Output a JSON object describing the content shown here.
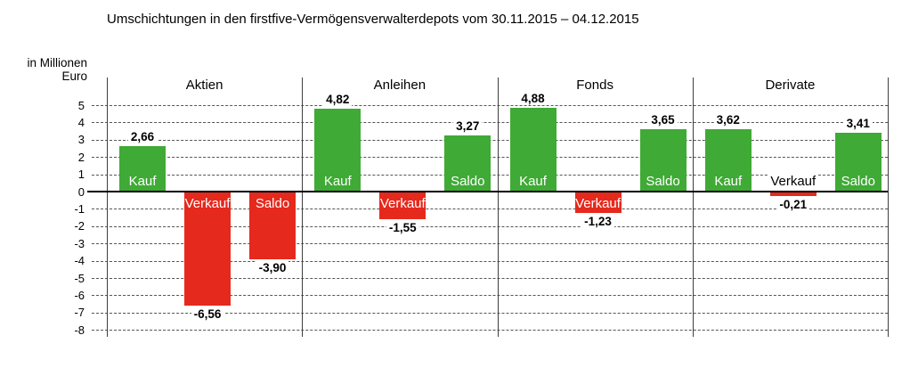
{
  "title": "Umschichtungen in den firstfive-Vermögensverwalterdepots vom 30.11.2015 – 04.12.2015",
  "y_axis_unit": {
    "line1": "in Millionen",
    "line2": "Euro"
  },
  "colors": {
    "positive_bar": "#3faa35",
    "negative_bar": "#e5291d",
    "bar_label_text": "#ffffff",
    "value_label_text": "#000000",
    "grid_line": "#555555",
    "separator_line": "#3f3f3f",
    "zero_line": "#000000",
    "background": "#ffffff"
  },
  "chart_data": {
    "type": "bar",
    "title": "Umschichtungen in den firstfive-Vermögensverwalterdepots vom 30.11.2015 – 04.12.2015",
    "xlabel": "",
    "ylabel": "in Millionen Euro",
    "ylim": [
      -8,
      5
    ],
    "y_ticks": [
      5,
      4,
      3,
      2,
      1,
      0,
      -1,
      -2,
      -3,
      -4,
      -5,
      -6,
      -7,
      -8
    ],
    "grid": true,
    "legend": false,
    "categories": [
      "Aktien",
      "Anleihen",
      "Fonds",
      "Derivate"
    ],
    "series": [
      {
        "name": "Kauf",
        "values": [
          2.66,
          4.82,
          4.88,
          3.62
        ]
      },
      {
        "name": "Verkauf",
        "values": [
          -6.56,
          -1.55,
          -1.23,
          -0.21
        ]
      },
      {
        "name": "Saldo",
        "values": [
          -3.9,
          3.27,
          3.65,
          3.41
        ]
      }
    ],
    "groups": [
      {
        "label": "Aktien",
        "bars": [
          {
            "name": "Kauf",
            "value": 2.66,
            "display": "2,66"
          },
          {
            "name": "Verkauf",
            "value": -6.56,
            "display": "-6,56"
          },
          {
            "name": "Saldo",
            "value": -3.9,
            "display": "-3,90"
          }
        ]
      },
      {
        "label": "Anleihen",
        "bars": [
          {
            "name": "Kauf",
            "value": 4.82,
            "display": "4,82"
          },
          {
            "name": "Verkauf",
            "value": -1.55,
            "display": "-1,55"
          },
          {
            "name": "Saldo",
            "value": 3.27,
            "display": "3,27"
          }
        ]
      },
      {
        "label": "Fonds",
        "bars": [
          {
            "name": "Kauf",
            "value": 4.88,
            "display": "4,88"
          },
          {
            "name": "Verkauf",
            "value": -1.23,
            "display": "-1,23"
          },
          {
            "name": "Saldo",
            "value": 3.65,
            "display": "3,65"
          }
        ]
      },
      {
        "label": "Derivate",
        "bars": [
          {
            "name": "Kauf",
            "value": 3.62,
            "display": "3,62"
          },
          {
            "name": "Verkauf",
            "value": -0.21,
            "display": "-0,21"
          },
          {
            "name": "Saldo",
            "value": 3.41,
            "display": "3,41"
          }
        ]
      }
    ]
  }
}
